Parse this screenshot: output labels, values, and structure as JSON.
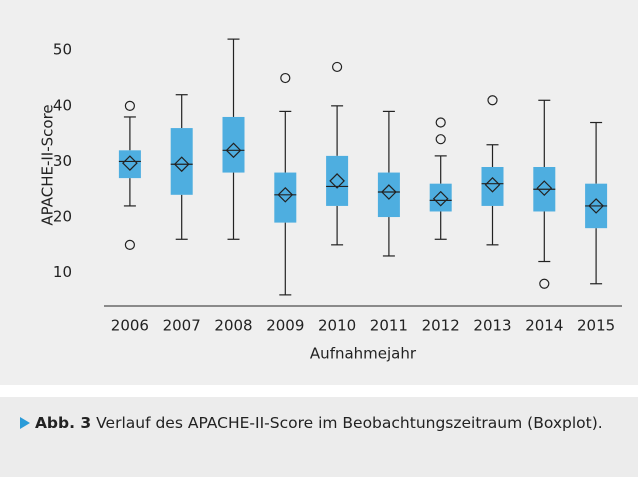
{
  "chart_data": {
    "type": "boxplot",
    "xlabel": "Aufnahmejahr",
    "ylabel": "APACHE-II-Score",
    "categories": [
      "2006",
      "2007",
      "2008",
      "2009",
      "2010",
      "2011",
      "2012",
      "2013",
      "2014",
      "2015"
    ],
    "color": "#4eaee0",
    "boxes": [
      {
        "whisker_low": 22,
        "q1": 27,
        "median": 30,
        "q3": 32,
        "whisker_high": 38,
        "mean": 29.7,
        "outliers": [
          40,
          15
        ]
      },
      {
        "whisker_low": 16,
        "q1": 24,
        "median": 29.5,
        "q3": 36,
        "whisker_high": 42,
        "mean": 29.5,
        "outliers": []
      },
      {
        "whisker_low": 16,
        "q1": 28,
        "median": 32,
        "q3": 38,
        "whisker_high": 52,
        "mean": 32,
        "outliers": []
      },
      {
        "whisker_low": 6,
        "q1": 19,
        "median": 24,
        "q3": 28,
        "whisker_high": 39,
        "mean": 24,
        "outliers": [
          45
        ]
      },
      {
        "whisker_low": 15,
        "q1": 22,
        "median": 25.5,
        "q3": 31,
        "whisker_high": 40,
        "mean": 26.5,
        "outliers": [
          47
        ]
      },
      {
        "whisker_low": 13,
        "q1": 20,
        "median": 24.5,
        "q3": 28,
        "whisker_high": 39,
        "mean": 24.5,
        "outliers": []
      },
      {
        "whisker_low": 16,
        "q1": 21,
        "median": 23,
        "q3": 26,
        "whisker_high": 31,
        "mean": 23.3,
        "outliers": [
          37,
          34
        ]
      },
      {
        "whisker_low": 15,
        "q1": 22,
        "median": 26,
        "q3": 29,
        "whisker_high": 33,
        "mean": 25.8,
        "outliers": [
          41
        ]
      },
      {
        "whisker_low": 12,
        "q1": 21,
        "median": 25,
        "q3": 29,
        "whisker_high": 41,
        "mean": 25.2,
        "outliers": [
          8
        ]
      },
      {
        "whisker_low": 8,
        "q1": 18,
        "median": 22,
        "q3": 26,
        "whisker_high": 37,
        "mean": 22,
        "outliers": []
      }
    ],
    "ylim": [
      4,
      54
    ],
    "yticks": [
      10,
      20,
      30,
      40,
      50
    ],
    "grid": false
  },
  "caption": {
    "label": "Abb. 3",
    "text": "Verlauf des APACHE-II-Score im Beobachtungszeitraum (Boxplot)."
  }
}
